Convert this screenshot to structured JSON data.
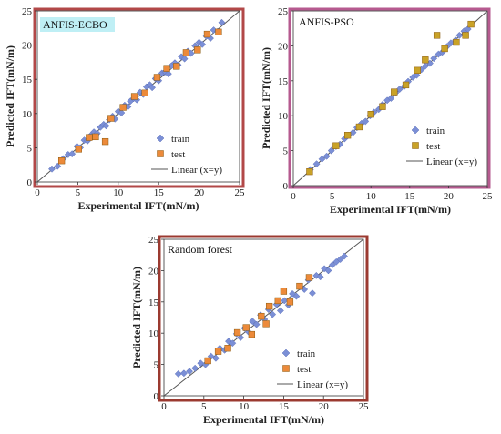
{
  "figure": {
    "legend_labels": {
      "train": "train",
      "test": "test",
      "linear": "Linear (x=y)"
    },
    "colors": {
      "train": "#7b8fd6",
      "test_orange": "#ec8a3a",
      "test_gold": "#c9a227",
      "identity_line": "#555555",
      "frame_a": "#b24848",
      "frame_b": "#b65a8f",
      "frame_c": "#9b3a30"
    }
  },
  "chart_data": [
    {
      "type": "scatter",
      "title": "ANFIS-ECBO",
      "xlabel": "Experimental IFT(mN/m)",
      "ylabel": "Predicted IFT(mN/m)",
      "xlim": [
        0,
        25
      ],
      "ylim": [
        0,
        25
      ],
      "xticks": [
        0,
        5,
        10,
        15,
        20,
        25
      ],
      "yticks": [
        0,
        5,
        10,
        15,
        20,
        25
      ],
      "grid": false,
      "legend_position": "bottom-right",
      "series": [
        {
          "name": "train",
          "marker": "diamond",
          "points": [
            [
              1.8,
              1.9
            ],
            [
              2.5,
              2.3
            ],
            [
              3.2,
              3.4
            ],
            [
              3.8,
              4.0
            ],
            [
              4.3,
              4.1
            ],
            [
              4.9,
              5.2
            ],
            [
              5.3,
              5.0
            ],
            [
              5.8,
              6.1
            ],
            [
              6.2,
              6.0
            ],
            [
              6.6,
              6.8
            ],
            [
              7.0,
              7.3
            ],
            [
              7.4,
              7.1
            ],
            [
              7.8,
              8.0
            ],
            [
              8.2,
              8.4
            ],
            [
              8.5,
              8.2
            ],
            [
              8.9,
              9.1
            ],
            [
              9.3,
              9.6
            ],
            [
              9.6,
              9.2
            ],
            [
              10.0,
              10.3
            ],
            [
              10.4,
              10.1
            ],
            [
              10.8,
              11.2
            ],
            [
              11.2,
              11.0
            ],
            [
              11.5,
              11.8
            ],
            [
              11.9,
              12.2
            ],
            [
              12.3,
              12.0
            ],
            [
              12.7,
              13.1
            ],
            [
              13.1,
              12.8
            ],
            [
              13.5,
              13.9
            ],
            [
              13.9,
              14.2
            ],
            [
              14.2,
              13.8
            ],
            [
              14.6,
              15.1
            ],
            [
              15.0,
              14.8
            ],
            [
              15.4,
              15.9
            ],
            [
              15.8,
              16.1
            ],
            [
              16.2,
              15.8
            ],
            [
              16.6,
              17.0
            ],
            [
              17.0,
              17.4
            ],
            [
              17.4,
              17.1
            ],
            [
              17.8,
              18.3
            ],
            [
              18.2,
              18.0
            ],
            [
              18.6,
              19.1
            ],
            [
              19.0,
              18.8
            ],
            [
              19.5,
              19.9
            ],
            [
              20.0,
              20.4
            ],
            [
              20.4,
              20.1
            ],
            [
              20.9,
              21.3
            ],
            [
              21.4,
              21.0
            ],
            [
              21.8,
              22.2
            ],
            [
              22.3,
              22.0
            ],
            [
              22.8,
              23.3
            ]
          ]
        },
        {
          "name": "test",
          "marker": "square",
          "points": [
            [
              3.0,
              3.1
            ],
            [
              5.1,
              4.8
            ],
            [
              6.4,
              6.5
            ],
            [
              7.2,
              6.6
            ],
            [
              8.4,
              5.9
            ],
            [
              9.1,
              9.3
            ],
            [
              10.6,
              10.9
            ],
            [
              12.0,
              12.5
            ],
            [
              13.3,
              13.0
            ],
            [
              14.8,
              15.3
            ],
            [
              16.0,
              16.6
            ],
            [
              17.2,
              16.9
            ],
            [
              18.4,
              18.9
            ],
            [
              19.8,
              19.3
            ],
            [
              21.0,
              21.6
            ],
            [
              22.4,
              21.9
            ]
          ]
        }
      ]
    },
    {
      "type": "scatter",
      "title": "ANFIS-PSO",
      "xlabel": "Experimental IFT(mN/m)",
      "ylabel": "Predicted IFT(mN/m)",
      "xlim": [
        0,
        25
      ],
      "ylim": [
        0,
        25
      ],
      "xticks": [
        0,
        5,
        10,
        15,
        20,
        25
      ],
      "yticks": [
        0,
        5,
        10,
        15,
        20,
        25
      ],
      "grid": false,
      "legend_position": "bottom-right",
      "series": [
        {
          "name": "train",
          "marker": "diamond",
          "points": [
            [
              2.2,
              2.3
            ],
            [
              3.0,
              3.1
            ],
            [
              3.7,
              3.8
            ],
            [
              4.3,
              4.2
            ],
            [
              4.9,
              5.0
            ],
            [
              5.5,
              5.6
            ],
            [
              6.0,
              5.9
            ],
            [
              6.6,
              6.7
            ],
            [
              7.1,
              7.2
            ],
            [
              7.7,
              7.6
            ],
            [
              8.2,
              8.3
            ],
            [
              8.8,
              8.9
            ],
            [
              9.3,
              9.2
            ],
            [
              9.9,
              10.0
            ],
            [
              10.4,
              10.5
            ],
            [
              11.0,
              10.9
            ],
            [
              11.5,
              11.6
            ],
            [
              12.1,
              12.2
            ],
            [
              12.6,
              12.5
            ],
            [
              13.2,
              13.3
            ],
            [
              13.7,
              13.8
            ],
            [
              14.3,
              14.2
            ],
            [
              14.8,
              14.9
            ],
            [
              15.4,
              15.5
            ],
            [
              15.9,
              15.8
            ],
            [
              16.5,
              16.6
            ],
            [
              17.0,
              17.1
            ],
            [
              17.6,
              17.5
            ],
            [
              18.1,
              18.2
            ],
            [
              18.7,
              18.8
            ],
            [
              19.2,
              19.1
            ],
            [
              19.8,
              19.9
            ],
            [
              20.3,
              20.4
            ],
            [
              20.9,
              20.8
            ],
            [
              21.4,
              21.5
            ],
            [
              22.0,
              22.1
            ],
            [
              22.5,
              22.4
            ]
          ]
        },
        {
          "name": "test",
          "marker": "square",
          "points": [
            [
              2.1,
              2.0
            ],
            [
              5.5,
              5.7
            ],
            [
              7.0,
              7.2
            ],
            [
              8.5,
              8.4
            ],
            [
              10.0,
              10.2
            ],
            [
              11.5,
              11.3
            ],
            [
              13.0,
              13.4
            ],
            [
              14.5,
              14.4
            ],
            [
              16.0,
              16.5
            ],
            [
              17.0,
              18.0
            ],
            [
              18.5,
              21.5
            ],
            [
              19.5,
              19.6
            ],
            [
              21.0,
              20.5
            ],
            [
              22.2,
              21.5
            ],
            [
              22.9,
              23.1
            ]
          ]
        }
      ]
    },
    {
      "type": "scatter",
      "title": "Random forest",
      "xlabel": "Experimental IFT(mN/m)",
      "ylabel": "Predicted IFT(mN/m)",
      "xlim": [
        0,
        25
      ],
      "ylim": [
        0,
        25
      ],
      "xticks": [
        0,
        5,
        10,
        15,
        20,
        25
      ],
      "yticks": [
        0,
        5,
        10,
        15,
        20,
        25
      ],
      "grid": false,
      "legend_position": "bottom-right",
      "series": [
        {
          "name": "train",
          "marker": "diamond",
          "points": [
            [
              1.8,
              3.5
            ],
            [
              2.5,
              3.6
            ],
            [
              3.2,
              3.9
            ],
            [
              3.9,
              4.4
            ],
            [
              4.6,
              5.2
            ],
            [
              5.2,
              5.0
            ],
            [
              5.9,
              6.3
            ],
            [
              6.5,
              6.0
            ],
            [
              7.0,
              7.6
            ],
            [
              7.6,
              7.3
            ],
            [
              8.1,
              8.7
            ],
            [
              8.6,
              8.4
            ],
            [
              9.1,
              9.9
            ],
            [
              9.6,
              9.3
            ],
            [
              10.1,
              10.8
            ],
            [
              10.6,
              10.2
            ],
            [
              11.1,
              11.9
            ],
            [
              11.6,
              11.4
            ],
            [
              12.1,
              12.9
            ],
            [
              12.6,
              12.2
            ],
            [
              13.1,
              13.8
            ],
            [
              13.6,
              13.0
            ],
            [
              14.1,
              14.6
            ],
            [
              14.6,
              13.6
            ],
            [
              15.1,
              15.2
            ],
            [
              15.6,
              14.5
            ],
            [
              16.1,
              16.3
            ],
            [
              16.6,
              15.9
            ],
            [
              17.1,
              17.4
            ],
            [
              17.6,
              17.0
            ],
            [
              18.1,
              18.5
            ],
            [
              18.6,
              16.4
            ],
            [
              19.1,
              19.2
            ],
            [
              19.6,
              19.0
            ],
            [
              20.1,
              20.3
            ],
            [
              20.6,
              20.0
            ],
            [
              21.1,
              20.9
            ],
            [
              21.6,
              21.4
            ],
            [
              22.1,
              21.8
            ],
            [
              22.6,
              22.3
            ]
          ]
        },
        {
          "name": "test",
          "marker": "square",
          "points": [
            [
              5.5,
              5.6
            ],
            [
              6.8,
              7.1
            ],
            [
              8.0,
              7.6
            ],
            [
              9.2,
              10.1
            ],
            [
              10.3,
              10.9
            ],
            [
              11.0,
              9.8
            ],
            [
              12.2,
              12.7
            ],
            [
              13.2,
              14.3
            ],
            [
              14.3,
              15.2
            ],
            [
              15.0,
              16.7
            ],
            [
              15.8,
              15.0
            ],
            [
              17.0,
              17.5
            ],
            [
              18.2,
              18.9
            ],
            [
              12.8,
              11.5
            ]
          ]
        }
      ]
    }
  ]
}
